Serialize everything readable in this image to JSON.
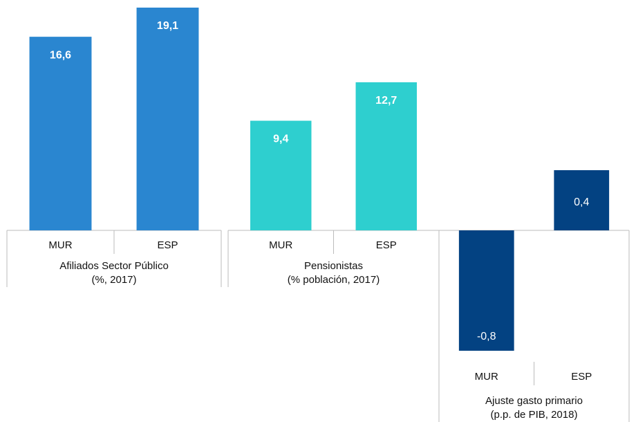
{
  "chart_data": [
    {
      "type": "bar",
      "title": [
        "Afiliados Sector Público",
        "(%, 2017)"
      ],
      "categories": [
        "MUR",
        "ESP"
      ],
      "values": [
        16.6,
        19.1
      ],
      "value_labels": [
        "16,6",
        "19,1"
      ],
      "color": "#2a86d0"
    },
    {
      "type": "bar",
      "title": [
        "Pensionistas",
        "(% población, 2017)"
      ],
      "categories": [
        "MUR",
        "ESP"
      ],
      "values": [
        9.4,
        12.7
      ],
      "value_labels": [
        "9,4",
        "12,7"
      ],
      "color": "#2ecfcf"
    },
    {
      "type": "bar",
      "title": [
        "Ajuste gasto primario",
        "(p.p. de PIB, 2018)"
      ],
      "categories": [
        "MUR",
        "ESP"
      ],
      "values": [
        -0.8,
        0.4
      ],
      "value_labels": [
        "-0,8",
        "0,4"
      ],
      "color": "#034282"
    }
  ]
}
